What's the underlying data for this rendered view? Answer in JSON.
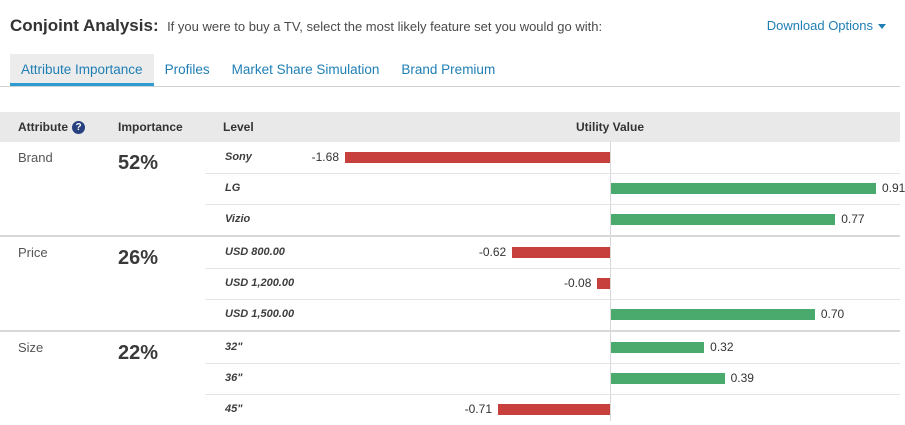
{
  "header": {
    "title": "Conjoint Analysis:",
    "subtitle": "If you were to buy a TV, select the most likely feature set you would go with:",
    "download_label": "Download Options"
  },
  "tabs": [
    {
      "label": "Attribute Importance",
      "active": true
    },
    {
      "label": "Profiles",
      "active": false
    },
    {
      "label": "Market Share Simulation",
      "active": false
    },
    {
      "label": "Brand Premium",
      "active": false
    }
  ],
  "table": {
    "columns": [
      "Attribute",
      "Importance",
      "Level",
      "Utility Value"
    ]
  },
  "icons": {
    "help": "?"
  },
  "colors": {
    "accent": "#1f7fb5",
    "tab_underline": "#2e9ad2",
    "help_icon": "#27417e",
    "table_header_bg": "#e9e9e9"
  },
  "chart_data": {
    "type": "bar",
    "orientation": "horizontal",
    "value_label": "Utility Value",
    "value_format": "0.00",
    "positive_color": "#4aa96c",
    "negative_color": "#c8403e",
    "zero_axis": true,
    "sections": [
      {
        "attribute": "Brand",
        "importance": "52%",
        "levels": [
          {
            "label": "Sony",
            "value": -1.68
          },
          {
            "label": "LG",
            "value": 0.91
          },
          {
            "label": "Vizio",
            "value": 0.77
          }
        ]
      },
      {
        "attribute": "Price",
        "importance": "26%",
        "levels": [
          {
            "label": "USD 800.00",
            "value": -0.62
          },
          {
            "label": "USD 1,200.00",
            "value": -0.08
          },
          {
            "label": "USD 1,500.00",
            "value": 0.7
          }
        ]
      },
      {
        "attribute": "Size",
        "importance": "22%",
        "levels": [
          {
            "label": "32\"",
            "value": 0.32
          },
          {
            "label": "36\"",
            "value": 0.39
          },
          {
            "label": "45\"",
            "value": -0.71
          }
        ]
      }
    ]
  }
}
